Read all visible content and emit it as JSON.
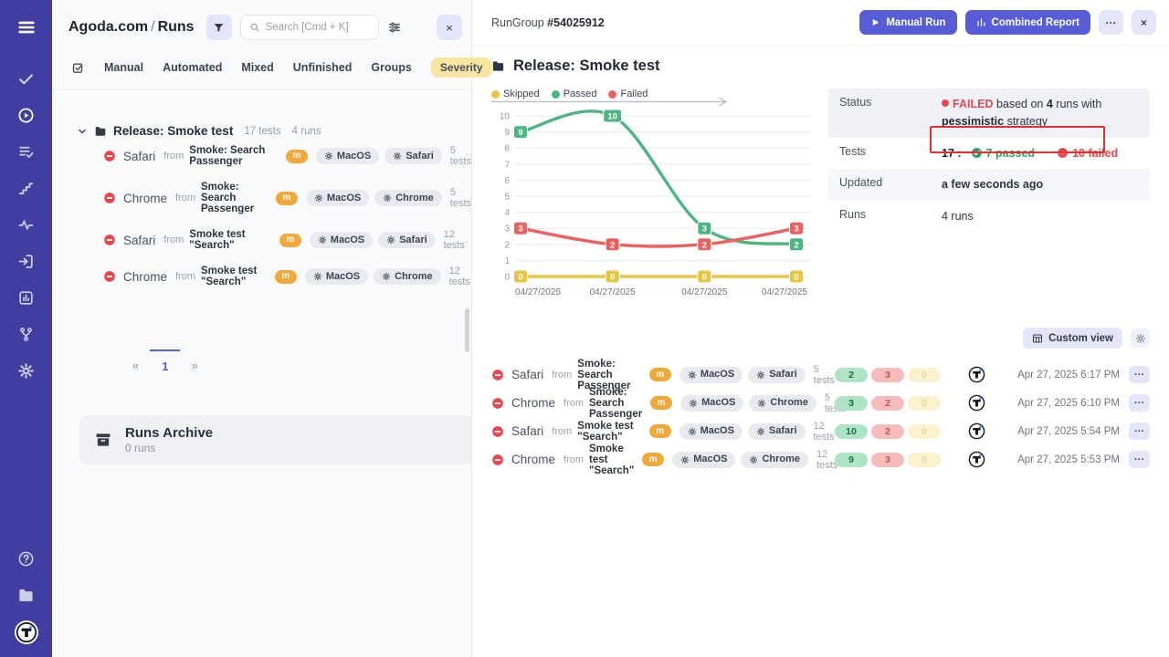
{
  "colors": {
    "accent": "#585cd6",
    "sidebar": "#423da1",
    "failed": "#e5484d",
    "passed": "#2f9e63",
    "skipped": "#e8c445",
    "annotation": "#e62f2f"
  },
  "sidebar": {
    "icons_top": [
      "menu-icon"
    ],
    "icons_nav": [
      "check-icon",
      "play-circle-icon",
      "list-check-icon",
      "steps-icon",
      "activity-icon",
      "import-icon",
      "report-icon",
      "branch-icon",
      "settings-icon"
    ],
    "active_icon": "play-circle-icon",
    "icons_bottom": [
      "help-icon",
      "folder-icon",
      "testomat-logo"
    ]
  },
  "left_panel": {
    "project": "Agoda.com",
    "separator": "/",
    "page": "Runs",
    "search_placeholder": "Search [Cmd + K]",
    "close": "×",
    "tabs": [
      "Manual",
      "Automated",
      "Mixed",
      "Unfinished",
      "Groups"
    ],
    "severity": "Severity",
    "group": {
      "name": "Release: Smoke test",
      "tests": "17 tests",
      "runs": "4 runs"
    },
    "runs": [
      {
        "browser": "Safari",
        "from": "from",
        "source": "Smoke: Search Passenger",
        "tag": "m",
        "platform": "MacOS",
        "env": "Safari",
        "tests": "5 tests"
      },
      {
        "browser": "Chrome",
        "from": "from",
        "source": "Smoke: Search Passenger",
        "tag": "m",
        "platform": "MacOS",
        "env": "Chrome",
        "tests": "5 tests"
      },
      {
        "browser": "Safari",
        "from": "from",
        "source": "Smoke test \"Search\"",
        "tag": "m",
        "platform": "MacOS",
        "env": "Safari",
        "tests": "12 tests"
      },
      {
        "browser": "Chrome",
        "from": "from",
        "source": "Smoke test \"Search\"",
        "tag": "m",
        "platform": "MacOS",
        "env": "Chrome",
        "tests": "12 tests"
      }
    ],
    "pagination": {
      "prev": "«",
      "current": "1",
      "next": "»"
    },
    "archive": {
      "title": "Runs Archive",
      "subtitle": "0 runs"
    }
  },
  "run_group_header": {
    "prefix": "RunGroup",
    "id": "#54025912",
    "manual_run": "Manual Run",
    "combined_report": "Combined Report",
    "more": "···",
    "close": "×"
  },
  "detail": {
    "title": "Release: Smoke test",
    "status": {
      "label": "Status",
      "failed_word": "FAILED",
      "based_on": "based on",
      "runs_count": "4",
      "runs_with": "runs with",
      "strategy": "pessimistic",
      "strategy_suffix": "strategy"
    },
    "tests": {
      "label": "Tests",
      "total": "17 :",
      "passed": "7 passed",
      "failed": "10 failed"
    },
    "updated": {
      "label": "Updated",
      "value": "a few seconds ago"
    },
    "runs": {
      "label": "Runs",
      "value": "4 runs"
    },
    "custom_view": "Custom view",
    "more": "···",
    "runs_list": [
      {
        "browser": "Safari",
        "from": "from",
        "source": "Smoke: Search Passenger",
        "tag": "m",
        "platform": "MacOS",
        "env": "Safari",
        "tests": "5 tests",
        "passed": "2",
        "failed": "3",
        "skipped": "0",
        "date": "Apr 27, 2025 6:17 PM"
      },
      {
        "browser": "Chrome",
        "from": "from",
        "source": "Smoke: Search Passenger",
        "tag": "m",
        "platform": "MacOS",
        "env": "Chrome",
        "tests": "5 tests",
        "passed": "3",
        "failed": "2",
        "skipped": "0",
        "date": "Apr 27, 2025 6:10 PM"
      },
      {
        "browser": "Safari",
        "from": "from",
        "source": "Smoke test \"Search\"",
        "tag": "m",
        "platform": "MacOS",
        "env": "Safari",
        "tests": "12 tests",
        "passed": "10",
        "failed": "2",
        "skipped": "0",
        "date": "Apr 27, 2025 5:54 PM"
      },
      {
        "browser": "Chrome",
        "from": "from",
        "source": "Smoke test \"Search\"",
        "tag": "m",
        "platform": "MacOS",
        "env": "Chrome",
        "tests": "12 tests",
        "passed": "9",
        "failed": "3",
        "skipped": "0",
        "date": "Apr 27, 2025 5:53 PM"
      }
    ]
  },
  "chart_data": {
    "type": "line",
    "x_labels": [
      "04/27/2025",
      "04/27/2025",
      "04/27/2025",
      "04/27/2025"
    ],
    "series": [
      {
        "name": "Skipped",
        "color": "#e8c445",
        "values": [
          0,
          0,
          0,
          0
        ]
      },
      {
        "name": "Passed",
        "color": "#4db580",
        "values": [
          9,
          10,
          3,
          2
        ]
      },
      {
        "name": "Failed",
        "color": "#ec6060",
        "values": [
          3,
          2,
          2,
          3
        ]
      }
    ],
    "ylim": [
      0,
      10
    ],
    "yticks": [
      0,
      1,
      2,
      3,
      4,
      5,
      6,
      7,
      8,
      9,
      10
    ],
    "grid": true,
    "legend_position": "top",
    "point_labels": true
  }
}
